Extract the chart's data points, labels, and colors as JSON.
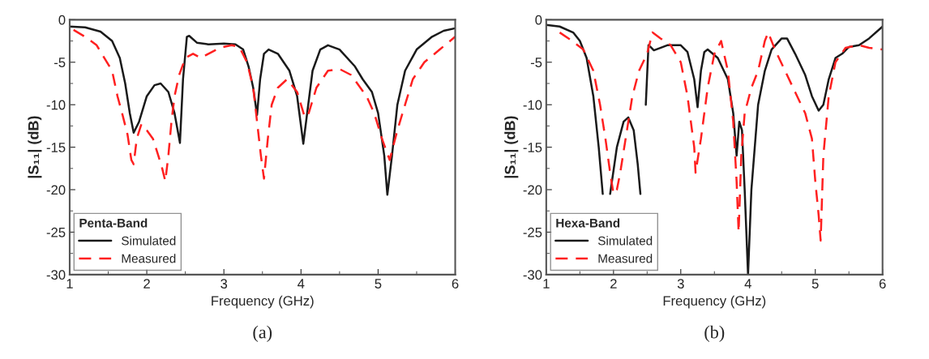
{
  "chart_data": [
    {
      "type": "line",
      "xlabel": "Frequency (GHz)",
      "ylabel": "|S₁₁| (dB)",
      "legend_title": "Penta-Band",
      "legend": "bottom left",
      "annotations": [
        "(a)"
      ],
      "xlim": [
        1,
        6
      ],
      "xticks": [
        1,
        2,
        3,
        4,
        5,
        6
      ],
      "ylim": [
        -30,
        0
      ],
      "yticks": [
        -30,
        -25,
        -20,
        -15,
        -10,
        -5,
        0
      ],
      "grid": false,
      "series": [
        {
          "name": "Simulated",
          "color": "#1a1a1a",
          "line_style": "solid",
          "x": [
            1.0,
            1.2,
            1.4,
            1.55,
            1.65,
            1.72,
            1.78,
            1.83,
            1.9,
            2.0,
            2.1,
            2.18,
            2.28,
            2.36,
            2.43,
            2.47,
            2.52,
            2.55,
            2.65,
            2.8,
            3.0,
            3.15,
            3.25,
            3.32,
            3.38,
            3.43,
            3.47,
            3.52,
            3.58,
            3.7,
            3.85,
            3.95,
            4.03,
            4.08,
            4.15,
            4.25,
            4.35,
            4.5,
            4.7,
            4.8,
            4.92,
            5.0,
            5.08,
            5.12,
            5.18,
            5.25,
            5.35,
            5.5,
            5.7,
            5.85,
            6.0
          ],
          "values": [
            -0.8,
            -0.9,
            -1.4,
            -2.5,
            -4.5,
            -7.5,
            -11,
            -13.3,
            -12,
            -9,
            -7.7,
            -7.5,
            -8.5,
            -11,
            -14.5,
            -7,
            -2.0,
            -1.9,
            -2.7,
            -2.9,
            -2.8,
            -2.9,
            -3.5,
            -5.5,
            -8,
            -11.2,
            -7,
            -4,
            -3.5,
            -4,
            -6,
            -9,
            -14.6,
            -11,
            -6,
            -3.5,
            -3,
            -3.5,
            -5.5,
            -7,
            -8.5,
            -11,
            -16,
            -20.6,
            -16,
            -10,
            -6,
            -3.5,
            -2,
            -1.3,
            -1.0
          ]
        },
        {
          "name": "Measured",
          "color": "#ff2020",
          "line_style": "dashed",
          "x": [
            1.05,
            1.2,
            1.35,
            1.45,
            1.55,
            1.62,
            1.68,
            1.75,
            1.8,
            1.83,
            1.87,
            1.93,
            2.0,
            2.08,
            2.15,
            2.2,
            2.24,
            2.28,
            2.32,
            2.36,
            2.42,
            2.5,
            2.6,
            2.7,
            2.8,
            2.95,
            3.1,
            3.2,
            3.3,
            3.38,
            3.43,
            3.48,
            3.52,
            3.57,
            3.62,
            3.7,
            3.82,
            3.95,
            4.05,
            4.1,
            4.2,
            4.35,
            4.5,
            4.65,
            4.85,
            4.95,
            5.05,
            5.15,
            5.25,
            5.35,
            5.45,
            5.6,
            5.8,
            6.0
          ],
          "values": [
            -1.2,
            -2.0,
            -3,
            -4.5,
            -6,
            -9,
            -11,
            -13.5,
            -16.5,
            -17,
            -14,
            -12.3,
            -13,
            -14,
            -16,
            -17.5,
            -19,
            -16,
            -12,
            -9,
            -6.5,
            -4.5,
            -4.0,
            -4.5,
            -4.0,
            -3.3,
            -3.0,
            -3.2,
            -5,
            -8,
            -12,
            -16,
            -18.7,
            -14,
            -10,
            -8,
            -7,
            -8.5,
            -11.5,
            -11,
            -8,
            -6,
            -5.8,
            -6.5,
            -9,
            -11,
            -14,
            -16.5,
            -13,
            -10,
            -7,
            -5,
            -3.5,
            -2.0
          ]
        }
      ]
    },
    {
      "type": "line",
      "xlabel": "Frequency (GHz)",
      "ylabel": "|S₁₁| (dB)",
      "legend_title": "Hexa-Band",
      "legend": "bottom left",
      "annotations": [
        "(b)"
      ],
      "xlim": [
        1,
        6
      ],
      "xticks": [
        1,
        2,
        3,
        4,
        5,
        6
      ],
      "ylim": [
        -30,
        0
      ],
      "yticks": [
        -30,
        -25,
        -20,
        -15,
        -10,
        -5,
        0
      ],
      "grid": false,
      "series": [
        {
          "name": "Simulated",
          "color": "#1a1a1a",
          "line_style": "solid",
          "x": [
            1.0,
            1.2,
            1.4,
            1.5,
            1.6,
            1.7,
            1.78,
            1.84,
            1.9,
            1.95,
            2.05,
            2.15,
            2.22,
            2.3,
            2.36,
            2.4,
            2.44,
            2.48,
            2.52,
            2.55,
            2.6,
            2.8,
            3.0,
            3.1,
            3.2,
            3.25,
            3.3,
            3.35,
            3.4,
            3.55,
            3.7,
            3.78,
            3.83,
            3.87,
            3.91,
            3.95,
            4.0,
            4.05,
            4.15,
            4.25,
            4.35,
            4.5,
            4.58,
            4.7,
            4.85,
            4.95,
            5.05,
            5.12,
            5.2,
            5.3,
            5.4,
            5.5,
            5.65,
            5.8,
            6.0
          ],
          "values": [
            -0.6,
            -0.8,
            -1.5,
            -2.5,
            -4.5,
            -9,
            -15,
            -20.5,
            null,
            -20.5,
            -15,
            -12,
            -11.5,
            -13,
            -17,
            -20.5,
            null,
            -10,
            -3,
            -3.2,
            -3.6,
            -3.0,
            -3.0,
            -3.8,
            -7,
            -10.3,
            -6,
            -3.8,
            -3.5,
            -4.5,
            -7,
            -11,
            -16,
            -12,
            -13,
            -20,
            -30,
            -20,
            -10,
            -6,
            -3.5,
            -2.2,
            -2.2,
            -4,
            -6.5,
            -9,
            -10.7,
            -10,
            -7,
            -4.5,
            -4.0,
            -3.2,
            -3.0,
            -2.2,
            -0.8
          ]
        },
        {
          "name": "Measured",
          "color": "#ff2020",
          "line_style": "dashed",
          "x": [
            1.2,
            1.35,
            1.55,
            1.7,
            1.8,
            1.88,
            1.95,
            2.0,
            2.05,
            2.1,
            2.2,
            2.28,
            2.38,
            2.5,
            2.58,
            2.7,
            2.85,
            3.0,
            3.1,
            3.2,
            3.22,
            3.3,
            3.4,
            3.5,
            3.6,
            3.7,
            3.78,
            3.83,
            3.86,
            3.9,
            3.95,
            4.05,
            4.15,
            4.25,
            4.3,
            4.4,
            4.55,
            4.7,
            4.85,
            4.95,
            5.0,
            5.05,
            5.08,
            5.12,
            5.2,
            5.3,
            5.45,
            5.65,
            5.8,
            6.0
          ],
          "values": [
            -1.5,
            -2.3,
            -3.5,
            -6,
            -10,
            -14,
            -18,
            -20.5,
            -20,
            -18,
            -13,
            -9,
            -6,
            -4,
            -1.5,
            -2.2,
            -3,
            -5,
            -9,
            -15,
            -18,
            -14,
            -8,
            -4,
            -2.5,
            -6,
            -12,
            -19,
            -25,
            -16,
            -11,
            -8,
            -6,
            -2.5,
            -1.5,
            -3.5,
            -6,
            -8.5,
            -11,
            -14,
            -19,
            -23,
            -26,
            -16,
            -9,
            -5,
            -3.3,
            -3,
            -3.3,
            -3.5
          ]
        }
      ]
    }
  ]
}
